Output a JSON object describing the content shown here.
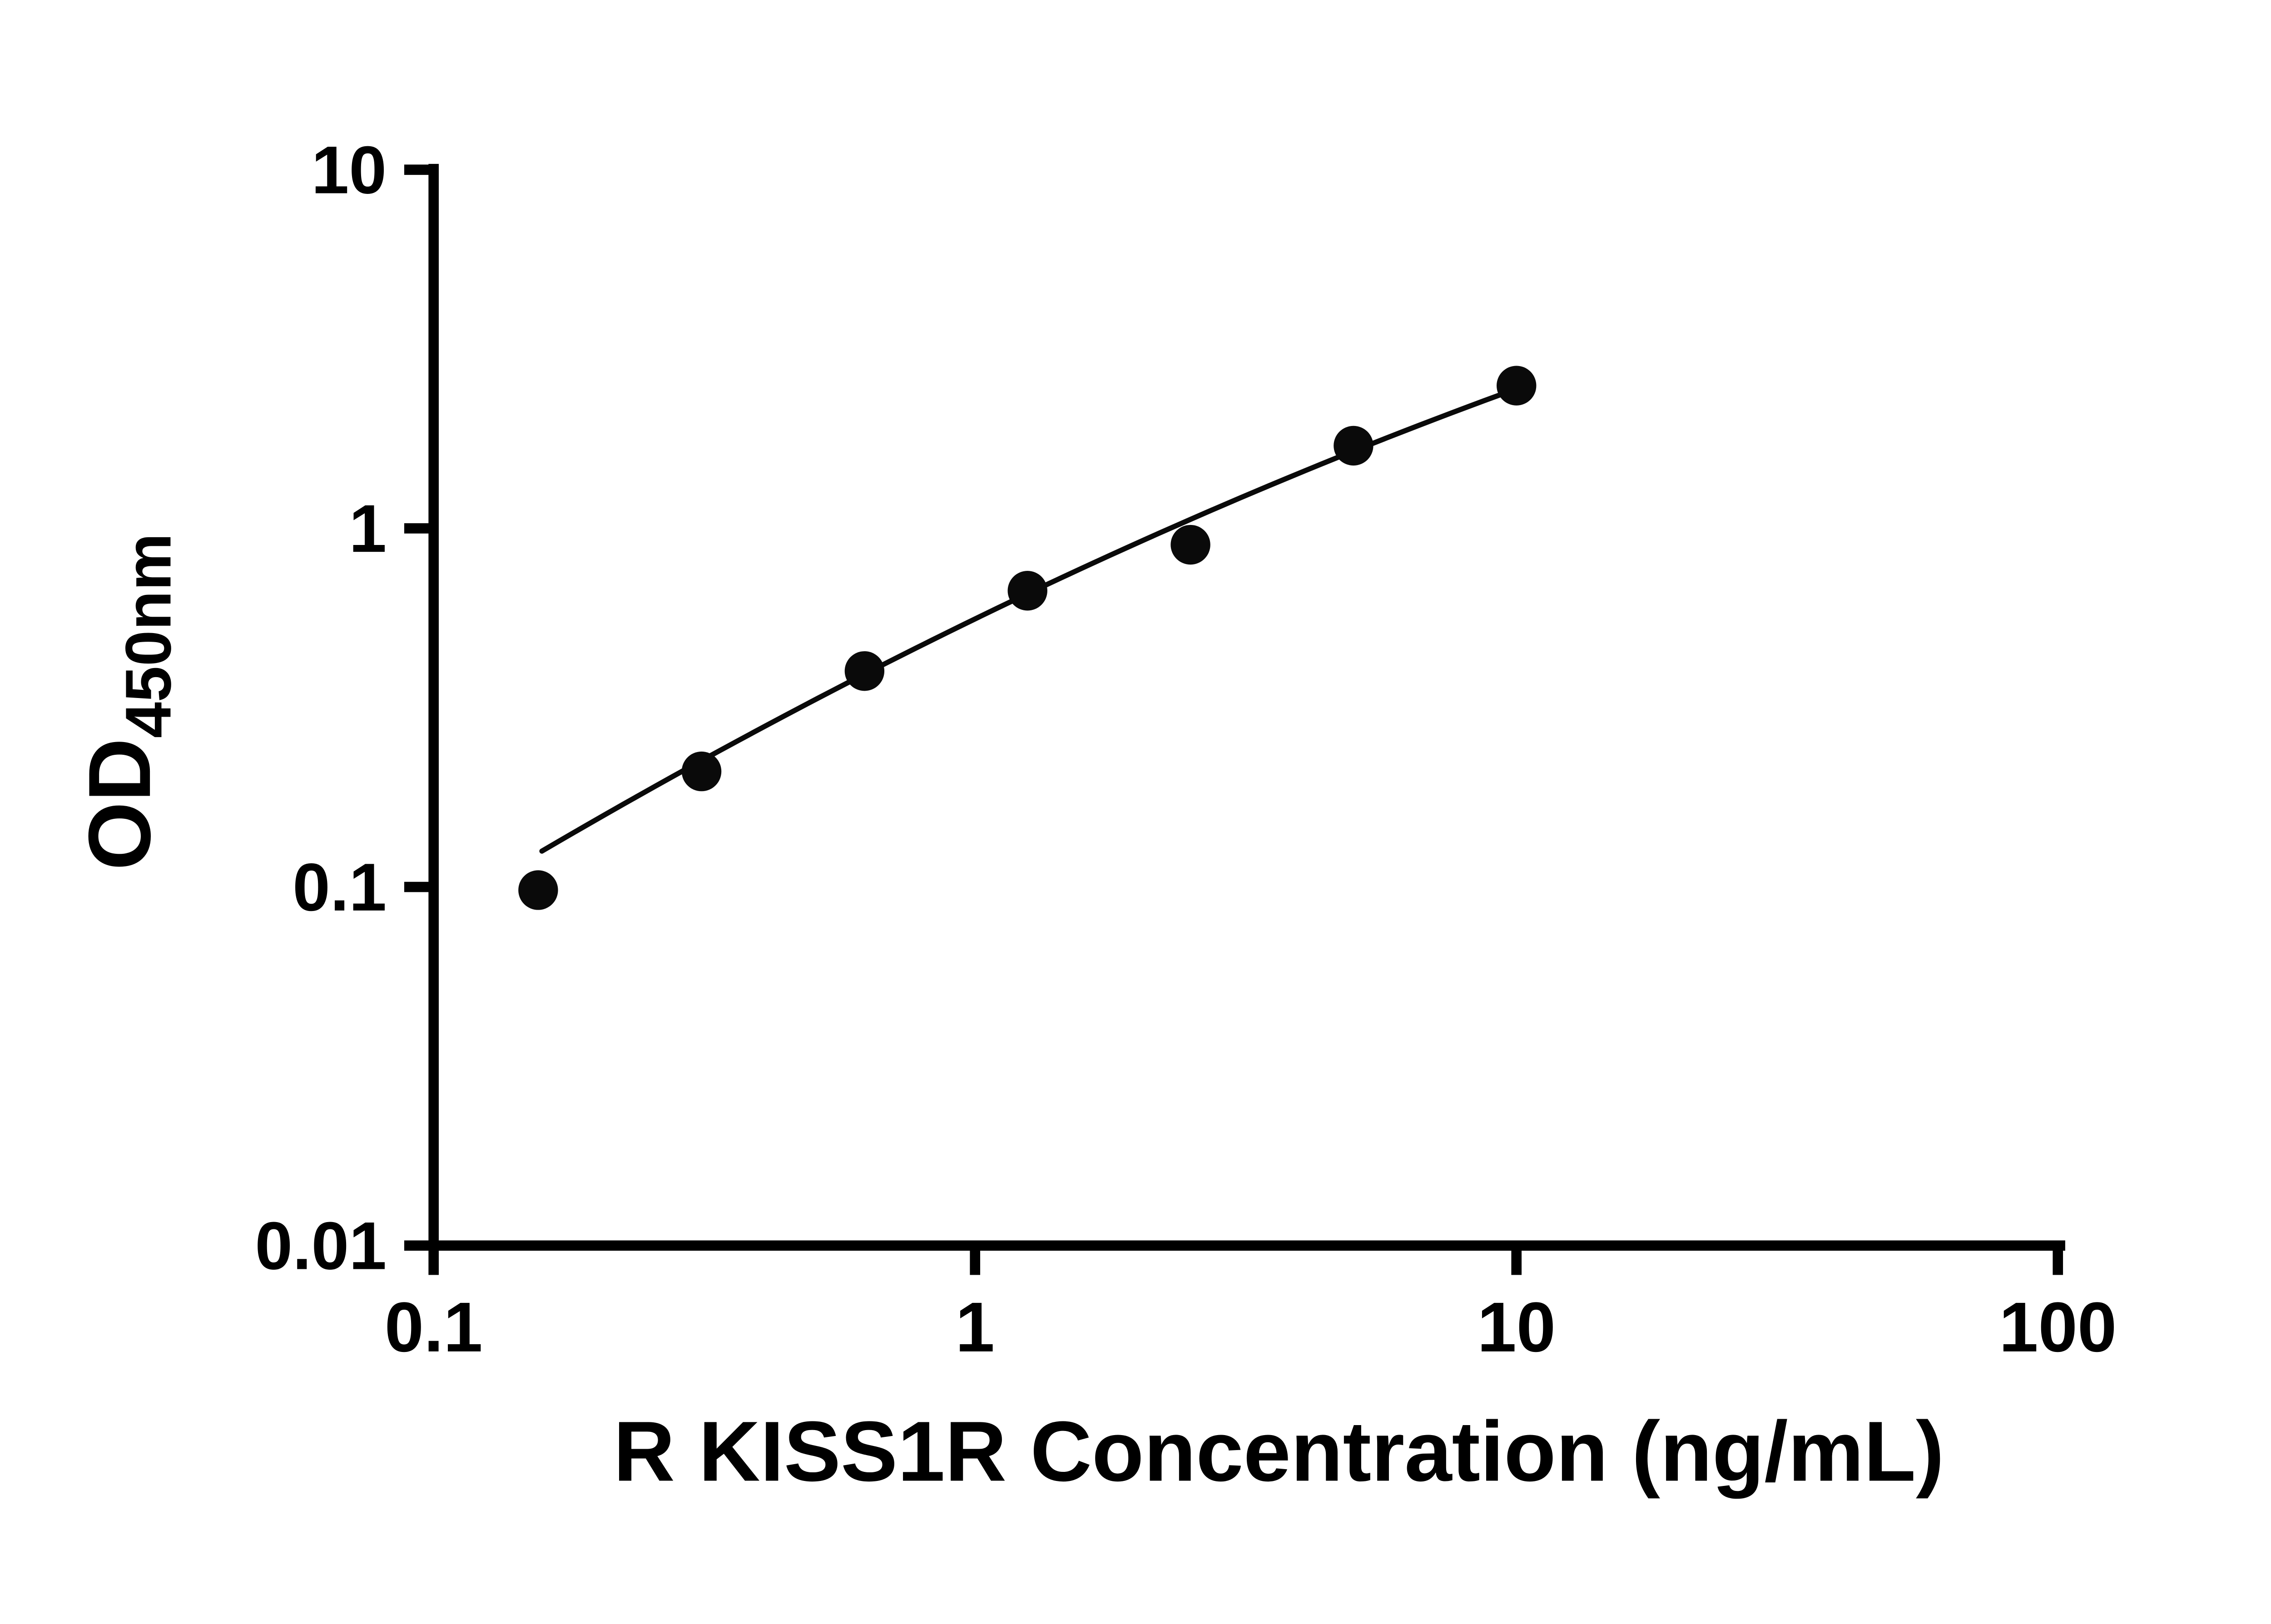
{
  "chart_data": {
    "type": "scatter",
    "title": "",
    "xlabel": "R KISS1R Concentration (ng/mL)",
    "ylabel_main": "OD",
    "ylabel_sub": "450nm",
    "x_scale": "log",
    "y_scale": "log",
    "xlim": [
      0.1,
      100
    ],
    "ylim": [
      0.01,
      10
    ],
    "grid": false,
    "legend": false,
    "x_ticks": [
      {
        "value": 0.1,
        "label": "0.1"
      },
      {
        "value": 1,
        "label": "1"
      },
      {
        "value": 10,
        "label": "10"
      },
      {
        "value": 100,
        "label": "100"
      }
    ],
    "y_ticks": [
      {
        "value": 0.01,
        "label": "0.01"
      },
      {
        "value": 0.1,
        "label": "0.1"
      },
      {
        "value": 1,
        "label": "1"
      },
      {
        "value": 10,
        "label": "10"
      }
    ],
    "points": [
      {
        "x": 0.156,
        "y": 0.098
      },
      {
        "x": 0.3125,
        "y": 0.21
      },
      {
        "x": 0.625,
        "y": 0.4
      },
      {
        "x": 1.25,
        "y": 0.67
      },
      {
        "x": 2.5,
        "y": 0.9
      },
      {
        "x": 5,
        "y": 1.7
      },
      {
        "x": 10,
        "y": 2.5
      }
    ],
    "fit_curve": {
      "note": "quadratic in log10-log10 space: logY = a + b*logX + c*logX^2",
      "coeffs": {
        "a": -0.2526,
        "b": 0.7348,
        "c": -0.0932
      },
      "log10_x_start": -0.8,
      "log10_x_end": 1.0
    },
    "colors": {
      "axis": "#000000",
      "point": "#0a0a0a",
      "line": "#0a0a0a",
      "background": "#ffffff",
      "text": "#000000"
    }
  }
}
